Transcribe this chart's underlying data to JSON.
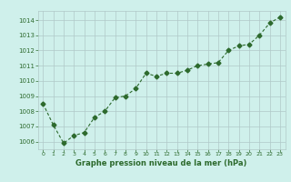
{
  "x": [
    0,
    1,
    2,
    3,
    4,
    5,
    6,
    7,
    8,
    9,
    10,
    11,
    12,
    13,
    14,
    15,
    16,
    17,
    18,
    19,
    20,
    21,
    22,
    23
  ],
  "y": [
    1008.5,
    1007.1,
    1005.9,
    1006.4,
    1006.6,
    1007.6,
    1008.0,
    1008.9,
    1009.0,
    1009.5,
    1010.5,
    1010.3,
    1010.5,
    1010.5,
    1010.7,
    1011.0,
    1011.1,
    1011.2,
    1012.0,
    1012.3,
    1012.4,
    1013.0,
    1013.8,
    1014.2
  ],
  "line_color": "#2d6a2d",
  "marker": "D",
  "marker_size": 2.5,
  "bg_color": "#cff0eb",
  "grid_color": "#b0c8c8",
  "xlabel": "Graphe pression niveau de la mer (hPa)",
  "xlabel_color": "#2d6a2d",
  "tick_color": "#2d6a2d",
  "ylim": [
    1005.5,
    1014.6
  ],
  "yticks": [
    1006,
    1007,
    1008,
    1009,
    1010,
    1011,
    1012,
    1013,
    1014
  ],
  "xlim": [
    -0.5,
    23.5
  ],
  "xticks": [
    0,
    1,
    2,
    3,
    4,
    5,
    6,
    7,
    8,
    9,
    10,
    11,
    12,
    13,
    14,
    15,
    16,
    17,
    18,
    19,
    20,
    21,
    22,
    23
  ]
}
